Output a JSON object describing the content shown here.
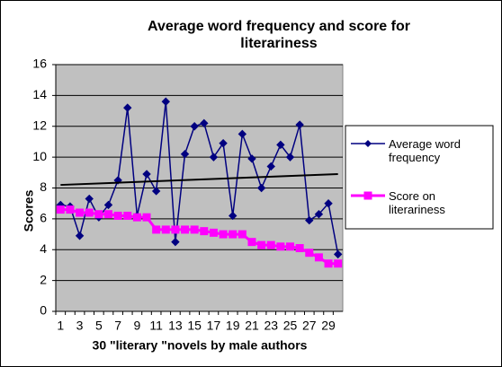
{
  "chart_data": {
    "type": "line",
    "title": "Average word frequency and score for literariness",
    "x_label": "30 \"literary \"novels by male authors",
    "y_label": "Scores",
    "categories": [
      1,
      null,
      3,
      null,
      5,
      null,
      7,
      null,
      9,
      null,
      11,
      null,
      13,
      null,
      15,
      null,
      17,
      null,
      19,
      null,
      21,
      null,
      23,
      null,
      25,
      null,
      27,
      null,
      29,
      null
    ],
    "series": [
      {
        "name": "Average word frequency",
        "color": "#000080",
        "marker": "diamond",
        "values": [
          6.9,
          6.8,
          4.9,
          7.3,
          6.1,
          6.9,
          8.5,
          13.2,
          6.2,
          8.9,
          7.8,
          13.6,
          4.5,
          10.2,
          12.0,
          12.2,
          10.0,
          10.9,
          6.2,
          11.5,
          9.9,
          8.0,
          9.4,
          10.8,
          10.0,
          12.1,
          5.9,
          6.3,
          7.0,
          3.7
        ]
      },
      {
        "name": "Score on literariness",
        "color": "#ff00ff",
        "marker": "square",
        "values": [
          6.6,
          6.6,
          6.4,
          6.4,
          6.3,
          6.3,
          6.2,
          6.2,
          6.1,
          6.1,
          5.3,
          5.3,
          5.3,
          5.3,
          5.3,
          5.2,
          5.1,
          5.0,
          5.0,
          5.0,
          4.5,
          4.3,
          4.3,
          4.2,
          4.2,
          4.1,
          3.8,
          3.5,
          3.1,
          3.1
        ]
      }
    ],
    "trendline": {
      "color": "#000000",
      "values": [
        8.2,
        8.9
      ]
    },
    "ylim": [
      0,
      16
    ],
    "yticks": [
      0,
      2,
      4,
      6,
      8,
      10,
      12,
      14,
      16
    ],
    "grid": true,
    "legend": "right",
    "plot_background": "#c0c0c0"
  }
}
